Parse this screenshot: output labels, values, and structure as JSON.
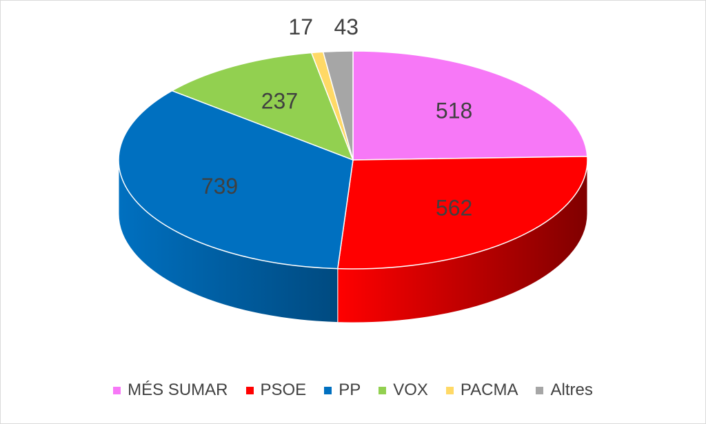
{
  "chart_data": {
    "type": "pie",
    "variant": "3d",
    "title": "",
    "categories": [
      "MÉS SUMAR",
      "PSOE",
      "PP",
      "VOX",
      "PACMA",
      "Altres"
    ],
    "values": [
      518,
      562,
      739,
      237,
      17,
      43
    ],
    "colors": [
      "#f778f7",
      "#ff0000",
      "#0070c0",
      "#92d050",
      "#ffd966",
      "#a6a6a6"
    ],
    "side_colors": [
      "#c040c0",
      "#800000",
      "#004a80",
      "#5a8a2a",
      "#bfa030",
      "#707070"
    ],
    "data_labels_shown": true,
    "legend_position": "bottom",
    "label_color": "#404040"
  }
}
